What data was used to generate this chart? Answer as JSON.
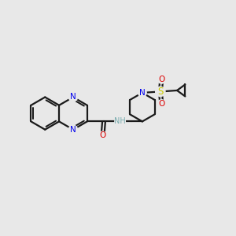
{
  "bg_color": "#e8e8e8",
  "bond_color": "#1a1a1a",
  "n_color": "#0000ee",
  "o_color": "#dd0000",
  "s_color": "#cccc00",
  "h_color": "#7aadaf",
  "bond_width": 1.6,
  "figsize": [
    3.0,
    3.0
  ],
  "dpi": 100,
  "xlim": [
    0,
    10
  ],
  "ylim": [
    0,
    10
  ]
}
